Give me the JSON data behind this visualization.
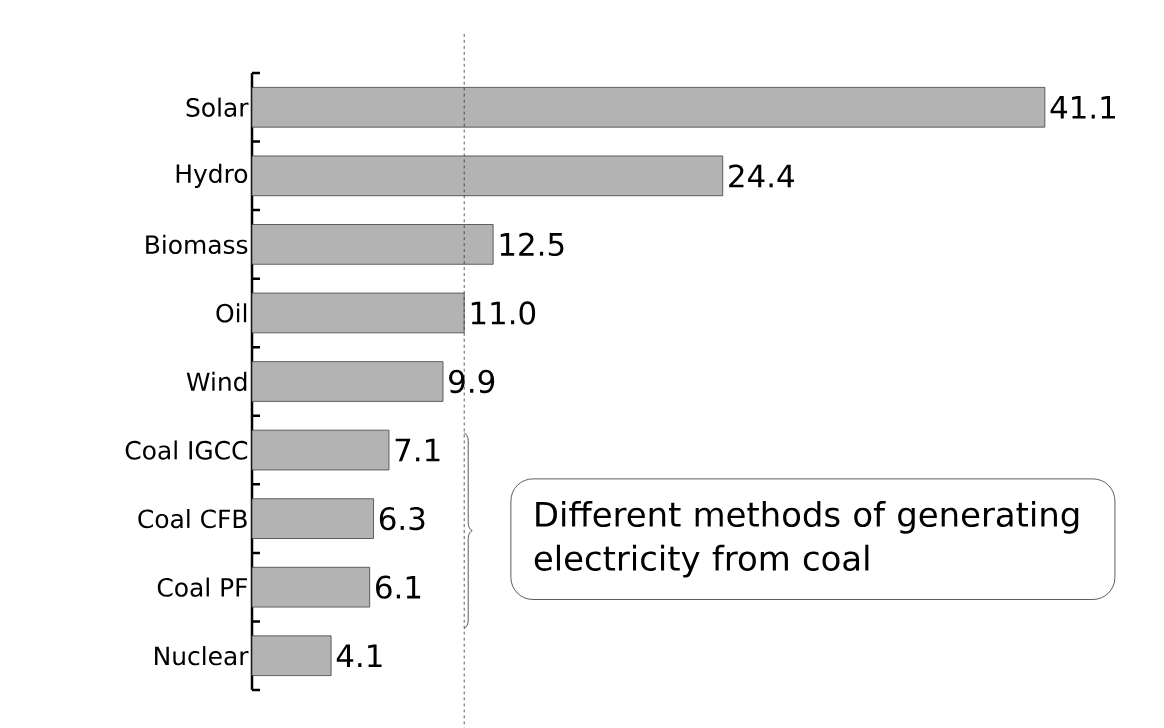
{
  "chart_data": {
    "type": "bar",
    "orientation": "horizontal",
    "categories": [
      "Solar",
      "Hydro",
      "Biomass",
      "Oil",
      "Wind",
      "Coal IGCC",
      "Coal CFB",
      "Coal PF",
      "Nuclear"
    ],
    "values": [
      41.1,
      24.4,
      12.5,
      11.0,
      9.9,
      7.1,
      6.3,
      6.1,
      4.1
    ],
    "color": "#b3b3b3",
    "value_labels": [
      "41.1",
      "24.4",
      "12.5",
      "11.0",
      "9.9",
      "7.1",
      "6.3",
      "6.1",
      "4.1"
    ],
    "tick_labels": "y",
    "ref_lines": [
      {
        "axis": "x",
        "value": 11.0,
        "line_style": "dashed",
        "color": "#333333"
      }
    ],
    "annotations": [
      "Different methods of generating electricity from coal"
    ]
  }
}
